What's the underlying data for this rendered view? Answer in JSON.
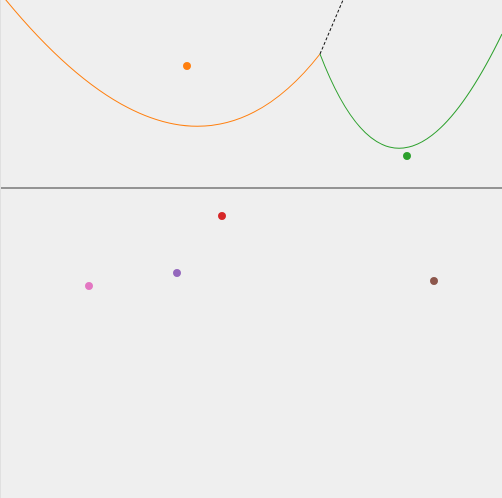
{
  "diagram": {
    "background": "#efefef",
    "line_color": "#777777",
    "bisector_color": "#111111",
    "sites": [
      {
        "name": "orange-site",
        "color": "#ff7f0e"
      },
      {
        "name": "green-site",
        "color": "#2ca02c"
      },
      {
        "name": "red-site",
        "color": "#d62728"
      },
      {
        "name": "purple-site",
        "color": "#9467bd"
      },
      {
        "name": "pink-site",
        "color": "#e377c2"
      },
      {
        "name": "brown-site",
        "color": "#8c564b"
      }
    ],
    "arcs": [
      {
        "name": "orange-parabola",
        "color": "#ff7f0e"
      },
      {
        "name": "green-parabola",
        "color": "#2ca02c"
      }
    ]
  }
}
